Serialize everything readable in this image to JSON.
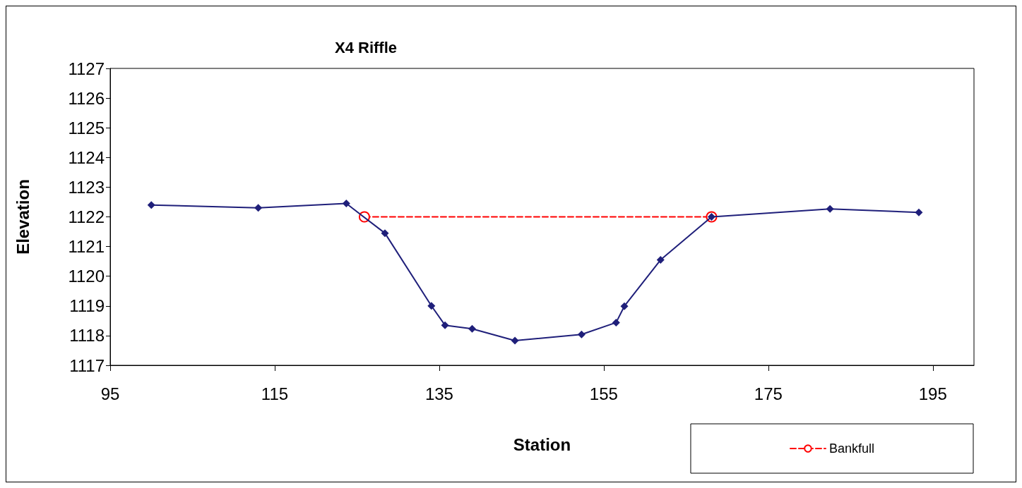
{
  "chart_data": {
    "type": "line",
    "title": "X4 Riffle",
    "xlabel": "Station",
    "ylabel": "Elevation",
    "xlim": [
      95,
      200
    ],
    "xticks": [
      95,
      115,
      135,
      155,
      175,
      195
    ],
    "ylim": [
      1117,
      1127
    ],
    "yticks": [
      1117,
      1118,
      1119,
      1120,
      1121,
      1122,
      1123,
      1124,
      1125,
      1126,
      1127
    ],
    "grid": false,
    "legend": "bottom right",
    "series": [
      {
        "color": "#1f1f7a",
        "marker": "diamond",
        "line_style": "solid",
        "x": [
          100,
          113,
          123.7,
          128.4,
          134.05,
          135.7,
          139,
          144.2,
          152.3,
          156.5,
          157.5,
          161.9,
          168.1,
          182.5,
          193.3
        ],
        "values": [
          1122.4,
          1122.3,
          1122.45,
          1121.45,
          1119,
          1118.35,
          1118.23,
          1117.83,
          1118.04,
          1118.44,
          1118.99,
          1120.55,
          1122,
          1122.27,
          1122.15
        ]
      },
      {
        "name": "Bankfull",
        "color": "#ff0000",
        "marker": "circle",
        "line_style": "dashed",
        "x": [
          125.9,
          168.1
        ],
        "values": [
          1122,
          1122
        ]
      }
    ]
  }
}
